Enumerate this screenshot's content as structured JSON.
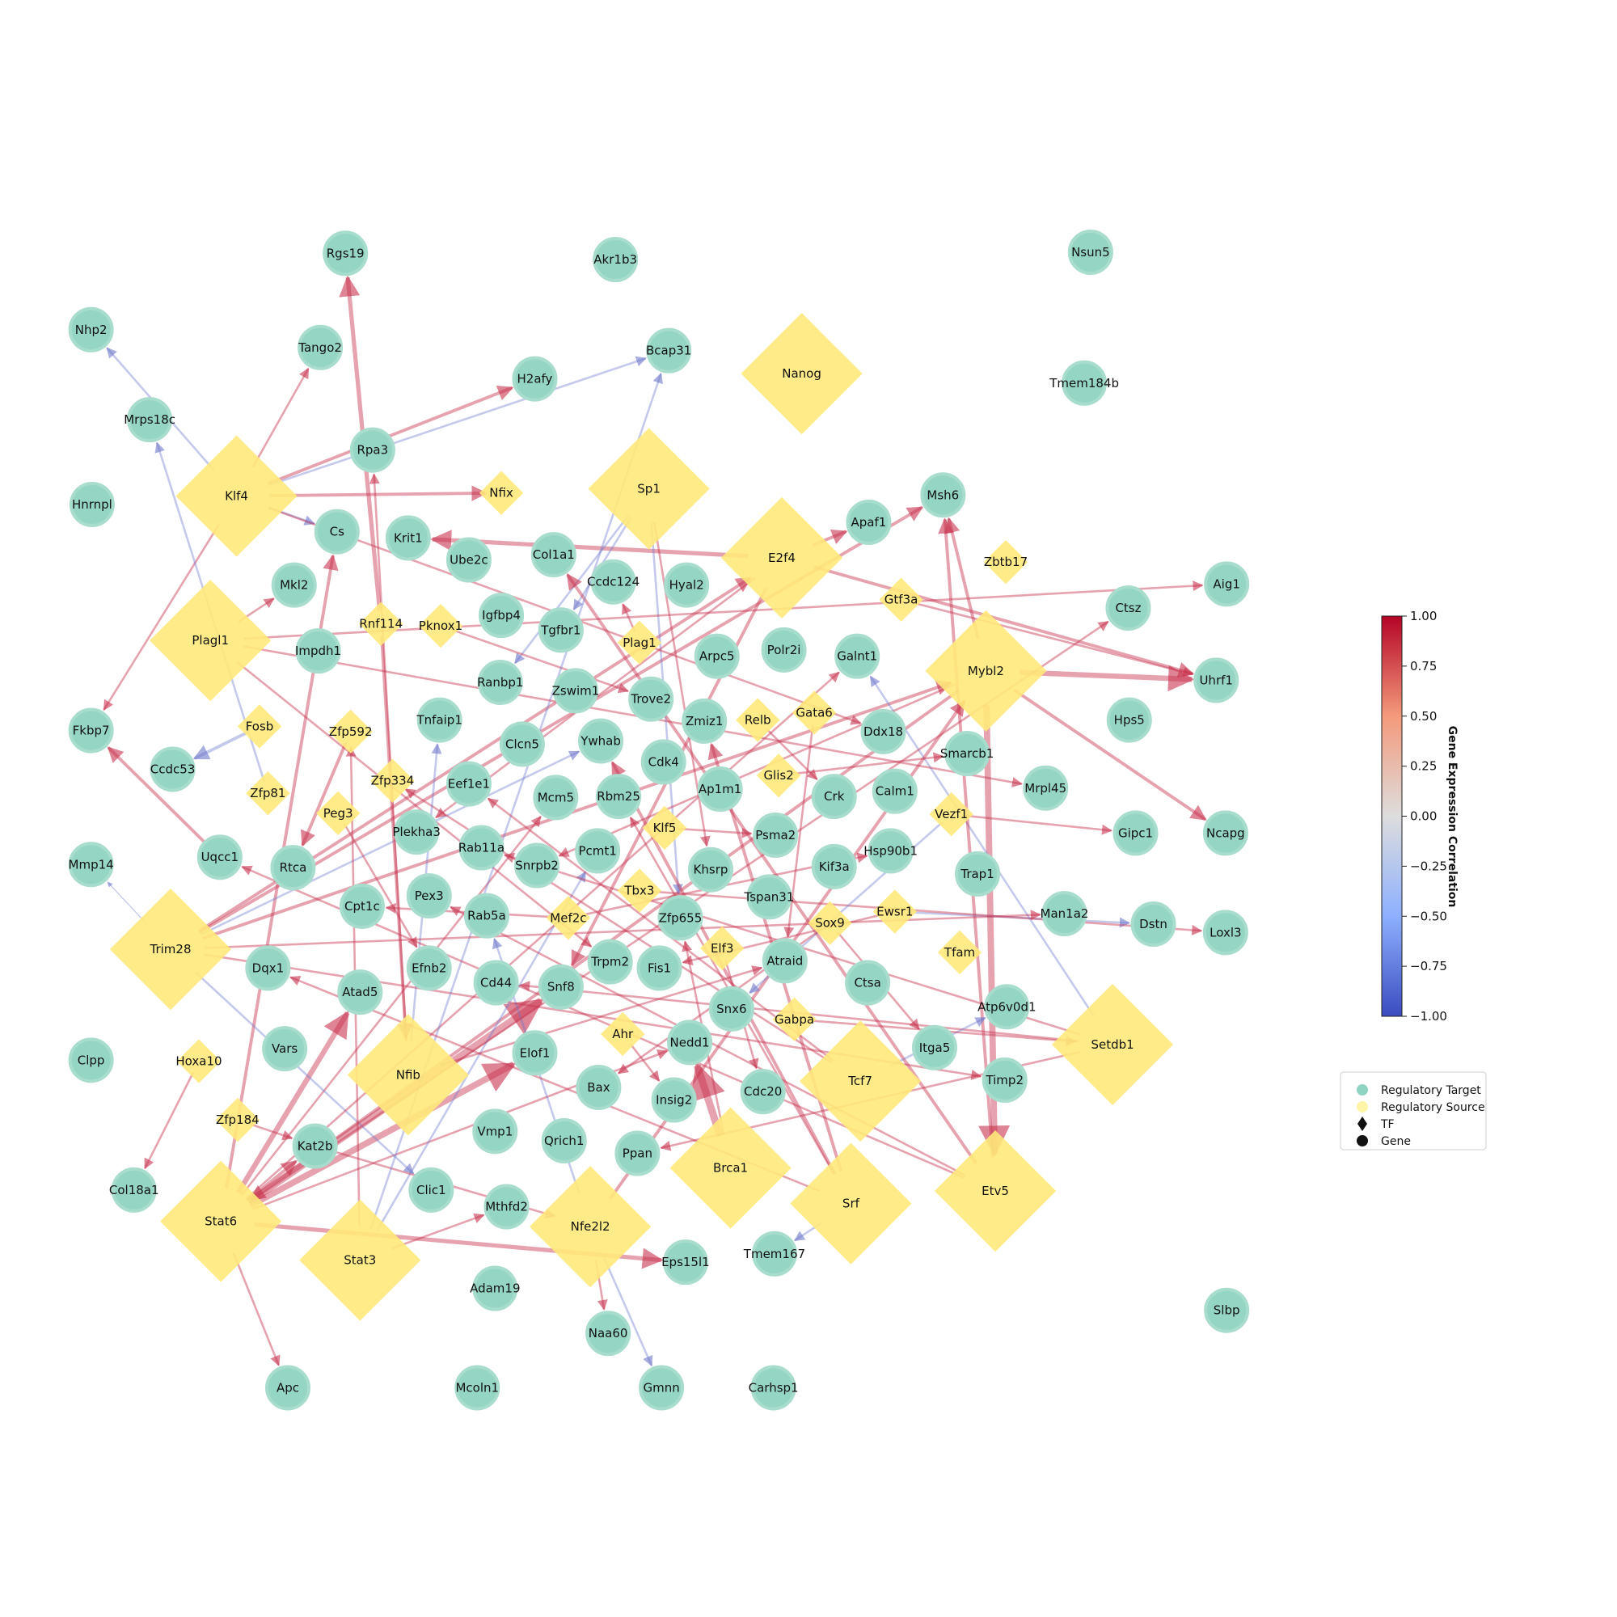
{
  "colorbar": {
    "title": "Gene Expression Correlation",
    "ticks": [
      "1.00",
      "0.75",
      "0.50",
      "0.25",
      "0.00",
      "−0.25",
      "−0.50",
      "−0.75",
      "−1.00"
    ]
  },
  "legend": {
    "items": [
      {
        "label": "Regulatory Target",
        "marker": "circle",
        "color": "#8fd3c3"
      },
      {
        "label": "Regulatory Source",
        "marker": "circle",
        "color": "#fff5a8"
      },
      {
        "label": "TF",
        "marker": "diamond",
        "color": "#111111"
      },
      {
        "label": "Gene",
        "marker": "circle",
        "color": "#111111"
      }
    ]
  },
  "colors": {
    "target": "#95d5c4",
    "target_stroke": "#a8dccd",
    "source": "#ffe97a",
    "positive_edge": "#c8324d",
    "negative_edge": "#6e78cc"
  },
  "nodes": {
    "tf_sizes": {
      "large": 1,
      "medium": 0.8,
      "small": 0.4
    },
    "targets": [
      "Rgs19",
      "Akr1b3",
      "Nsun5",
      "Nhp2",
      "Tango2",
      "Bcap31",
      "H2afy",
      "Tmem184b",
      "Mrps18c",
      "Rpa3",
      "Hnrnpl",
      "Msh6",
      "Cs",
      "Krit1",
      "Col1a1",
      "Ube2c",
      "Apaf1",
      "Aig1",
      "Ctsz",
      "Mkl2",
      "Ccdc124",
      "Hyal2",
      "Igfbp4",
      "Tgfbr1",
      "Impdh1",
      "Arpc5",
      "Polr2i",
      "Galnt1",
      "Uhrf1",
      "Ranbp1",
      "Zswim1",
      "Trove2",
      "Fkbp7",
      "Tnfaip1",
      "Zmiz1",
      "Ddx18",
      "Hps5",
      "Clcn5",
      "Ywhab",
      "Ccdc53",
      "Smarcb1",
      "Cdk4",
      "Eef1e1",
      "Mcm5",
      "Rbm25",
      "Ap1m1",
      "Crk",
      "Calm1",
      "Mrpl45",
      "Plekha3",
      "Gipc1",
      "Ncapg",
      "Rab11a",
      "Pcmt1",
      "Psma2",
      "Uqcc1",
      "Rtca",
      "Snrpb2",
      "Mmp14",
      "Hsp90b1",
      "Kif3a",
      "Trap1",
      "Khsrp",
      "Pex3",
      "Cpt1c",
      "Rab5a",
      "Tspan31",
      "Zfp655",
      "Man1a2",
      "Dstn",
      "Loxl3",
      "Efnb2",
      "Dqx1",
      "Trpm2",
      "Fis1",
      "Atraid",
      "Cd44",
      "Snf8",
      "Atad5",
      "Ctsa",
      "Snx6",
      "Atp6v0d1",
      "Vars",
      "Nedd1",
      "Clpp",
      "Itga5",
      "Elof1",
      "Bax",
      "Timp2",
      "Insig2",
      "Cdc20",
      "Kat2b",
      "Vmp1",
      "Qrich1",
      "Ppan",
      "Col18a1",
      "Clic1",
      "Mthfd2",
      "Eps15l1",
      "Tmem167",
      "Adam19",
      "Slbp",
      "Naa60",
      "Apc",
      "Mcoln1",
      "Gmnn",
      "Carhsp1"
    ],
    "sources": [
      "Nanog",
      "Klf4",
      "Nfix",
      "Sp1",
      "E2f4",
      "Zbtb17",
      "Gtf3a",
      "Plagl1",
      "Rnf114",
      "Pknox1",
      "Plag1",
      "Mybl2",
      "Fosb",
      "Zfp592",
      "Relb",
      "Gata6",
      "Zfp334",
      "Glis2",
      "Zfp81",
      "Peg3",
      "Vezf1",
      "Klf5",
      "Tbx3",
      "Mef2c",
      "Sox9",
      "Ewsr1",
      "Trim28",
      "Elf3",
      "Tfam",
      "Gabpa",
      "Ahr",
      "Setdb1",
      "Hoxa10",
      "Nfib",
      "Tcf7",
      "Zfp184",
      "Brca1",
      "Srf",
      "Etv5",
      "Stat6",
      "Stat3",
      "Nfe2l2"
    ]
  }
}
